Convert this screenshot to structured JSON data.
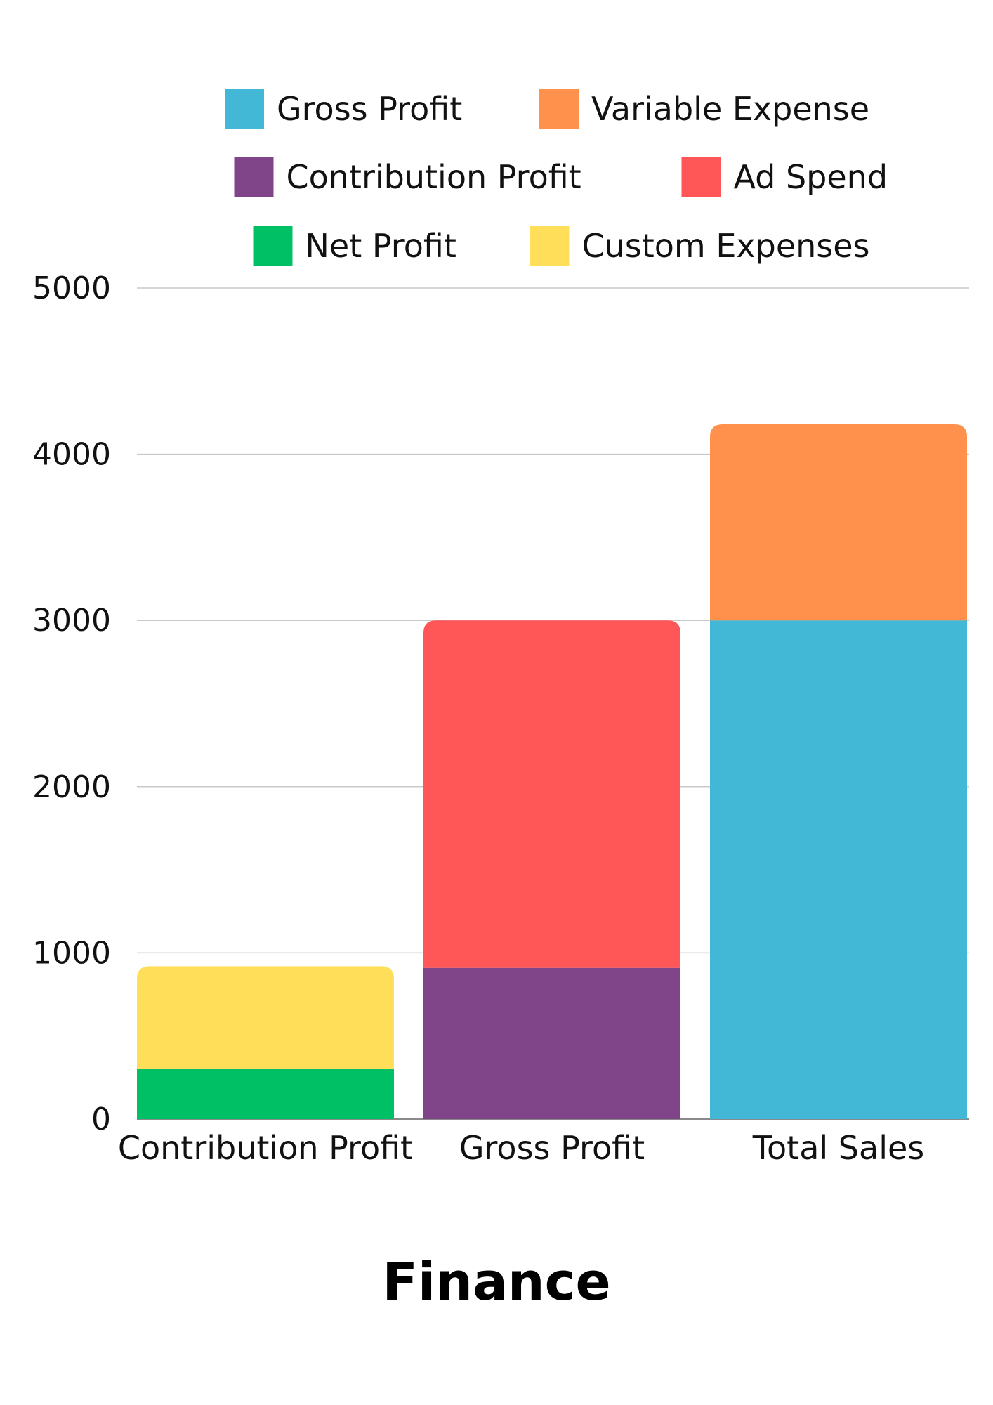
{
  "chart_data": {
    "type": "bar",
    "stacked": true,
    "title": "Finance",
    "xlabel": "",
    "ylabel": "",
    "ylim": [
      0,
      5000
    ],
    "yticks": [
      0,
      1000,
      2000,
      3000,
      4000,
      5000
    ],
    "grid": true,
    "legend_position": "top",
    "categories": [
      "Contribution Profit",
      "Gross Profit",
      "Total Sales"
    ],
    "series": [
      {
        "name": "Gross Profit",
        "color": "#42B7D6",
        "values": [
          0,
          0,
          3000
        ]
      },
      {
        "name": "Variable Expense",
        "color": "#FF914D",
        "values": [
          0,
          0,
          1180
        ]
      },
      {
        "name": "Contribution Profit",
        "color": "#804589",
        "values": [
          0,
          910,
          0
        ]
      },
      {
        "name": "Ad Spend",
        "color": "#FF5757",
        "values": [
          0,
          2090,
          0
        ]
      },
      {
        "name": "Net Profit",
        "color": "#00C065",
        "values": [
          300,
          0,
          0
        ]
      },
      {
        "name": "Custom Expenses",
        "color": "#FFDE59",
        "values": [
          620,
          0,
          0
        ]
      }
    ],
    "stack_order": [
      [
        "Net Profit",
        "Custom Expenses"
      ],
      [
        "Contribution Profit",
        "Ad Spend"
      ],
      [
        "Gross Profit",
        "Variable Expense"
      ]
    ]
  }
}
